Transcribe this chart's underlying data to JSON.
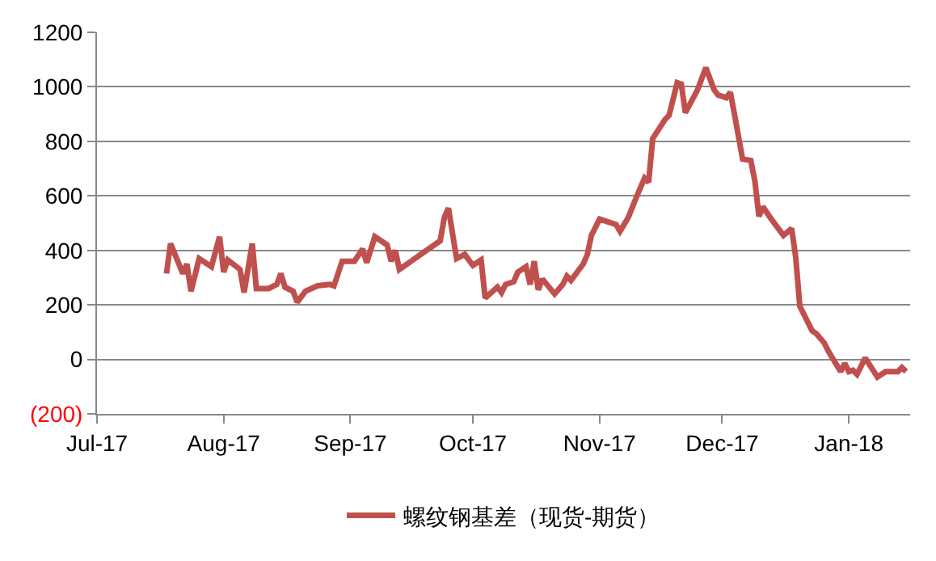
{
  "chart_data": {
    "type": "line",
    "x": [
      "2017-07-18",
      "2017-07-19",
      "2017-07-22",
      "2017-07-23",
      "2017-07-24",
      "2017-07-26",
      "2017-07-29",
      "2017-07-31",
      "2017-08-01",
      "2017-08-02",
      "2017-08-05",
      "2017-08-06",
      "2017-08-08",
      "2017-08-09",
      "2017-08-12",
      "2017-08-14",
      "2017-08-15",
      "2017-08-16",
      "2017-08-18",
      "2017-08-19",
      "2017-08-21",
      "2017-08-24",
      "2017-08-27",
      "2017-08-28",
      "2017-08-30",
      "2017-09-02",
      "2017-09-04",
      "2017-09-05",
      "2017-09-07",
      "2017-09-10",
      "2017-09-11",
      "2017-09-12",
      "2017-09-13",
      "2017-09-23",
      "2017-09-24",
      "2017-09-25",
      "2017-09-27",
      "2017-09-29",
      "2017-10-01",
      "2017-10-03",
      "2017-10-04",
      "2017-10-07",
      "2017-10-08",
      "2017-10-09",
      "2017-10-11",
      "2017-10-12",
      "2017-10-14",
      "2017-10-15",
      "2017-10-16",
      "2017-10-17",
      "2017-10-18",
      "2017-10-21",
      "2017-10-23",
      "2017-10-24",
      "2017-10-25",
      "2017-10-28",
      "2017-10-29",
      "2017-10-30",
      "2017-11-01",
      "2017-11-03",
      "2017-11-05",
      "2017-11-06",
      "2017-11-08",
      "2017-11-10",
      "2017-11-12",
      "2017-11-13",
      "2017-11-14",
      "2017-11-17",
      "2017-11-18",
      "2017-11-20",
      "2017-11-21",
      "2017-11-22",
      "2017-11-25",
      "2017-11-27",
      "2017-11-29",
      "2017-11-30",
      "2017-12-02",
      "2017-12-03",
      "2017-12-04",
      "2017-12-06",
      "2017-12-08",
      "2017-12-09",
      "2017-12-10",
      "2017-12-11",
      "2017-12-13",
      "2017-12-16",
      "2017-12-18",
      "2017-12-19",
      "2017-12-20",
      "2017-12-23",
      "2017-12-24",
      "2017-12-26",
      "2017-12-27",
      "2017-12-30",
      "2017-12-31",
      "2018-01-01",
      "2018-01-02",
      "2018-01-03",
      "2018-01-05",
      "2018-01-08",
      "2018-01-10",
      "2018-01-13",
      "2018-01-14",
      "2018-01-15"
    ],
    "series": [
      {
        "name": "螺纹钢基差（现货-期货）",
        "color": "#c0504d",
        "values": [
          315,
          425,
          315,
          350,
          250,
          370,
          340,
          450,
          320,
          365,
          330,
          245,
          425,
          260,
          260,
          275,
          315,
          265,
          250,
          210,
          250,
          270,
          275,
          270,
          360,
          360,
          405,
          355,
          450,
          420,
          360,
          400,
          330,
          435,
          520,
          555,
          370,
          385,
          345,
          365,
          225,
          265,
          245,
          275,
          285,
          320,
          340,
          275,
          360,
          255,
          295,
          240,
          275,
          305,
          290,
          350,
          385,
          455,
          515,
          505,
          495,
          470,
          520,
          595,
          665,
          650,
          810,
          880,
          895,
          1015,
          1010,
          905,
          990,
          1070,
          990,
          970,
          960,
          980,
          900,
          735,
          730,
          655,
          525,
          560,
          515,
          455,
          480,
          375,
          195,
          105,
          95,
          60,
          30,
          -45,
          -15,
          -45,
          -40,
          -55,
          5,
          -65,
          -45,
          -45,
          -30,
          -45
        ]
      }
    ],
    "xlim": [
      "2017-07-01",
      "2018-01-16"
    ],
    "xticks": [
      {
        "value": "2017-07-01",
        "label": "Jul-17"
      },
      {
        "value": "2017-08-01",
        "label": "Aug-17"
      },
      {
        "value": "2017-09-01",
        "label": "Sep-17"
      },
      {
        "value": "2017-10-01",
        "label": "Oct-17"
      },
      {
        "value": "2017-11-01",
        "label": "Nov-17"
      },
      {
        "value": "2017-12-01",
        "label": "Dec-17"
      },
      {
        "value": "2018-01-01",
        "label": "Jan-18"
      }
    ],
    "ylim": [
      -200,
      1200
    ],
    "yticks": [
      {
        "value": -200,
        "label": "(200)"
      },
      0,
      200,
      400,
      600,
      800,
      1000,
      1200
    ],
    "grid": "y",
    "legend": "bottom",
    "marker": "none",
    "line_style": "solid"
  }
}
